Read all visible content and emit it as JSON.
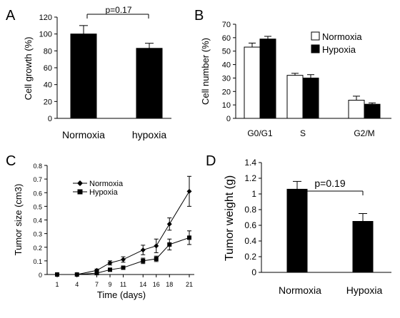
{
  "chart_data": [
    {
      "panel": "A",
      "type": "bar",
      "ylabel": "Cell growth (%)",
      "ylim": [
        0,
        120
      ],
      "yticks": [
        0,
        20,
        40,
        60,
        80,
        100,
        120
      ],
      "categories": [
        "Normoxia",
        "hypoxia"
      ],
      "values": [
        100,
        83
      ],
      "errors": [
        10,
        6
      ],
      "annotation": "p=0.17"
    },
    {
      "panel": "B",
      "type": "bar",
      "ylabel": "Cell number (%)",
      "ylim": [
        0,
        70
      ],
      "yticks": [
        0,
        10,
        20,
        30,
        40,
        50,
        60,
        70
      ],
      "categories": [
        "G0/G1",
        "S",
        "G2/M"
      ],
      "legend_position": "top-right",
      "series": [
        {
          "name": "Normoxia",
          "color": "#ffffff",
          "values": [
            53,
            32,
            13.5
          ],
          "errors": [
            3,
            1.5,
            3
          ]
        },
        {
          "name": "Hypoxia",
          "color": "#000000",
          "values": [
            59,
            30,
            10.5
          ],
          "errors": [
            2,
            2.5,
            1
          ]
        }
      ]
    },
    {
      "panel": "C",
      "type": "line",
      "xlabel": "Time (days)",
      "ylabel": "Tumor size (cm3)",
      "ylim": [
        0,
        0.8
      ],
      "yticks": [
        "0",
        "0.1",
        "0.2",
        "0.3",
        "0.4",
        "0.5",
        "0.6",
        "0.7",
        "0.8"
      ],
      "x": [
        1,
        4,
        7,
        9,
        11,
        14,
        16,
        18,
        21
      ],
      "legend_position": "top-left",
      "series": [
        {
          "name": "Normoxia",
          "marker": "diamond",
          "values": [
            0,
            0,
            0.03,
            0.085,
            0.11,
            0.18,
            0.21,
            0.37,
            0.61
          ],
          "errors": [
            0,
            0,
            0.01,
            0.015,
            0.02,
            0.035,
            0.05,
            0.045,
            0.11
          ]
        },
        {
          "name": "Hypoxia",
          "marker": "square",
          "values": [
            0,
            0,
            0.01,
            0.035,
            0.05,
            0.1,
            0.115,
            0.22,
            0.27
          ],
          "errors": [
            0,
            0,
            0.005,
            0.01,
            0.01,
            0.02,
            0.02,
            0.04,
            0.05
          ]
        }
      ]
    },
    {
      "panel": "D",
      "type": "bar",
      "ylabel": "Tumor weight (g)",
      "ylim": [
        0,
        1.4
      ],
      "yticks": [
        "0",
        "0.2",
        "0.4",
        "0.6",
        "0.8",
        "1",
        "1.2",
        "1.4"
      ],
      "categories": [
        "Normoxia",
        "Hypoxia"
      ],
      "values": [
        1.06,
        0.65
      ],
      "errors": [
        0.1,
        0.1
      ],
      "annotation": "p=0.19"
    }
  ]
}
